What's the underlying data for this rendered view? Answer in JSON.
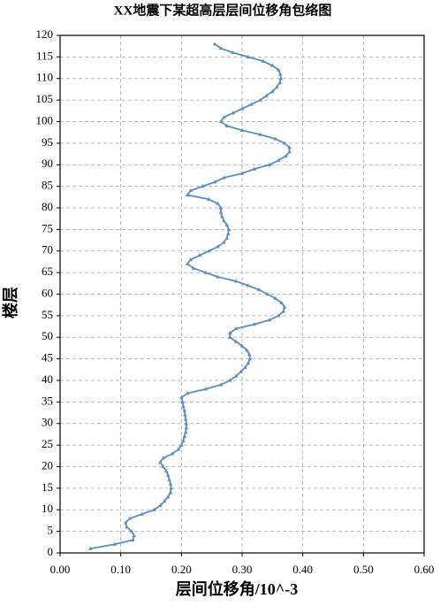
{
  "chart_data": {
    "type": "line",
    "title": "XX地震下某超高层层间位移角包络图",
    "x_label": "层间位移角/10^-3",
    "y_label": "楼层",
    "color": "#5b8fc2",
    "grid": true,
    "xlim": [
      0,
      0.6
    ],
    "xticks": [
      {
        "value": 0,
        "label": "0.00"
      },
      {
        "value": 0.1,
        "label": "0.10"
      },
      {
        "value": 0.2,
        "label": "0.20"
      },
      {
        "value": 0.3,
        "label": "0.30"
      },
      {
        "value": 0.4,
        "label": "0.40"
      },
      {
        "value": 0.5,
        "label": "0.50"
      },
      {
        "value": 0.6,
        "label": "0.60"
      }
    ],
    "ylim": [
      0,
      120
    ],
    "yticks": [
      0,
      5,
      10,
      15,
      20,
      25,
      30,
      35,
      40,
      45,
      50,
      55,
      60,
      65,
      70,
      75,
      80,
      85,
      90,
      95,
      100,
      105,
      110,
      115,
      120
    ],
    "x": [
      0.05,
      0.09,
      0.12,
      0.122,
      0.118,
      0.11,
      0.108,
      0.115,
      0.135,
      0.155,
      0.165,
      0.172,
      0.178,
      0.182,
      0.183,
      0.182,
      0.18,
      0.178,
      0.175,
      0.17,
      0.165,
      0.17,
      0.185,
      0.195,
      0.2,
      0.203,
      0.205,
      0.207,
      0.208,
      0.208,
      0.207,
      0.206,
      0.205,
      0.203,
      0.202,
      0.2,
      0.21,
      0.24,
      0.265,
      0.28,
      0.29,
      0.298,
      0.305,
      0.31,
      0.313,
      0.312,
      0.308,
      0.3,
      0.29,
      0.28,
      0.28,
      0.29,
      0.32,
      0.345,
      0.36,
      0.368,
      0.37,
      0.365,
      0.355,
      0.342,
      0.328,
      0.31,
      0.29,
      0.26,
      0.24,
      0.22,
      0.21,
      0.215,
      0.23,
      0.245,
      0.26,
      0.27,
      0.275,
      0.277,
      0.278,
      0.275,
      0.27,
      0.267,
      0.265,
      0.265,
      0.26,
      0.245,
      0.21,
      0.215,
      0.235,
      0.255,
      0.27,
      0.3,
      0.32,
      0.345,
      0.36,
      0.372,
      0.378,
      0.378,
      0.37,
      0.355,
      0.33,
      0.3,
      0.275,
      0.265,
      0.27,
      0.285,
      0.3,
      0.315,
      0.33,
      0.34,
      0.35,
      0.357,
      0.362,
      0.364,
      0.363,
      0.36,
      0.35,
      0.335,
      0.31,
      0.285,
      0.265,
      0.255
    ],
    "values": [
      1,
      2,
      3,
      4,
      5,
      6,
      7,
      8,
      9,
      10,
      11,
      12,
      13,
      14,
      15,
      16,
      17,
      18,
      19,
      20,
      21,
      22,
      23,
      24,
      25,
      26,
      27,
      28,
      29,
      30,
      31,
      32,
      33,
      34,
      35,
      36,
      37,
      38,
      39,
      40,
      41,
      42,
      43,
      44,
      45,
      46,
      47,
      48,
      49,
      50,
      51,
      52,
      53,
      54,
      55,
      56,
      57,
      58,
      59,
      60,
      61,
      62,
      63,
      64,
      65,
      66,
      67,
      68,
      69,
      70,
      71,
      72,
      73,
      74,
      75,
      76,
      77,
      78,
      79,
      80,
      81,
      82,
      83,
      84,
      85,
      86,
      87,
      88,
      89,
      90,
      91,
      92,
      93,
      94,
      95,
      96,
      97,
      98,
      99,
      100,
      101,
      102,
      103,
      104,
      105,
      106,
      107,
      108,
      109,
      110,
      111,
      112,
      113,
      114,
      115,
      116,
      117,
      118
    ]
  }
}
